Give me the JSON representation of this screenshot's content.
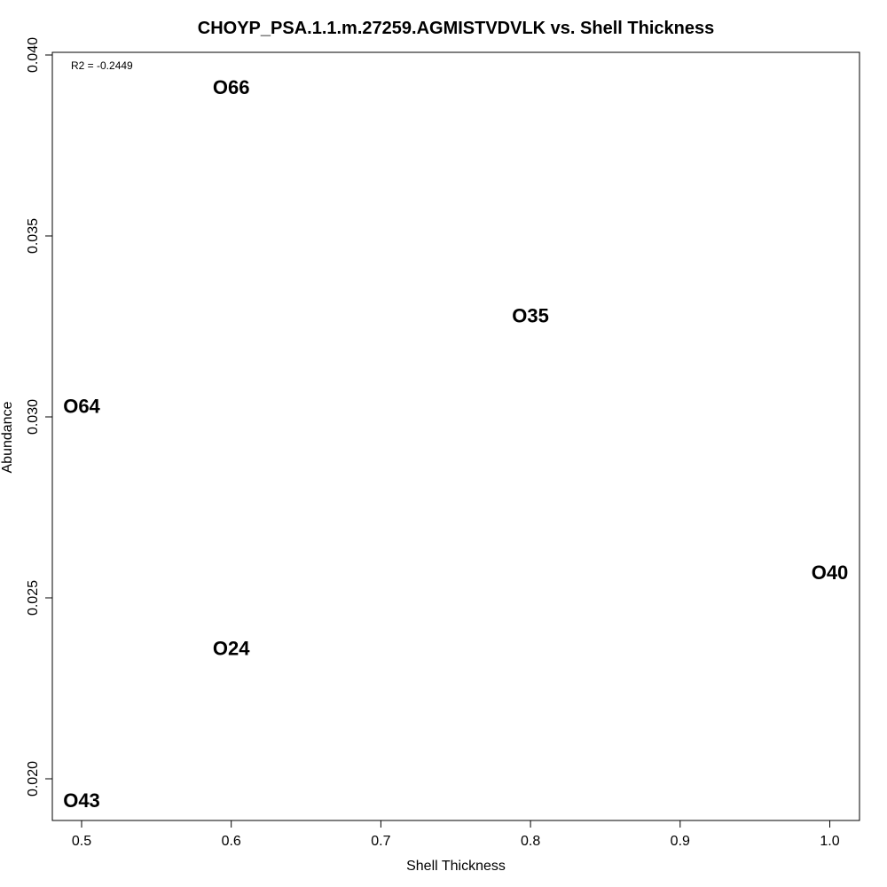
{
  "chart_data": {
    "type": "scatter",
    "title": "CHOYP_PSA.1.1.m.27259.AGMISTVDVLK vs. Shell Thickness",
    "xlabel": "Shell Thickness",
    "ylabel": "Abundance",
    "xlim": [
      0.48,
      1.02
    ],
    "ylim": [
      0.0194,
      0.04
    ],
    "xticks": [
      0.5,
      0.6,
      0.7,
      0.8,
      0.9,
      1.0
    ],
    "xtick_labels": [
      "0.5",
      "0.6",
      "0.7",
      "0.8",
      "0.9",
      "1.0"
    ],
    "yticks": [
      0.02,
      0.025,
      0.03,
      0.035,
      0.04
    ],
    "ytick_labels": [
      "0.020",
      "0.025",
      "0.030",
      "0.035",
      "0.040"
    ],
    "annotation": "R2 = -0.2449",
    "grid": false,
    "points": [
      {
        "label": "O66",
        "x": 0.6,
        "y": 0.0391
      },
      {
        "label": "O35",
        "x": 0.8,
        "y": 0.0328
      },
      {
        "label": "O64",
        "x": 0.5,
        "y": 0.0303
      },
      {
        "label": "O40",
        "x": 1.0,
        "y": 0.0257
      },
      {
        "label": "O24",
        "x": 0.6,
        "y": 0.0236
      },
      {
        "label": "O43",
        "x": 0.5,
        "y": 0.0194
      }
    ]
  }
}
